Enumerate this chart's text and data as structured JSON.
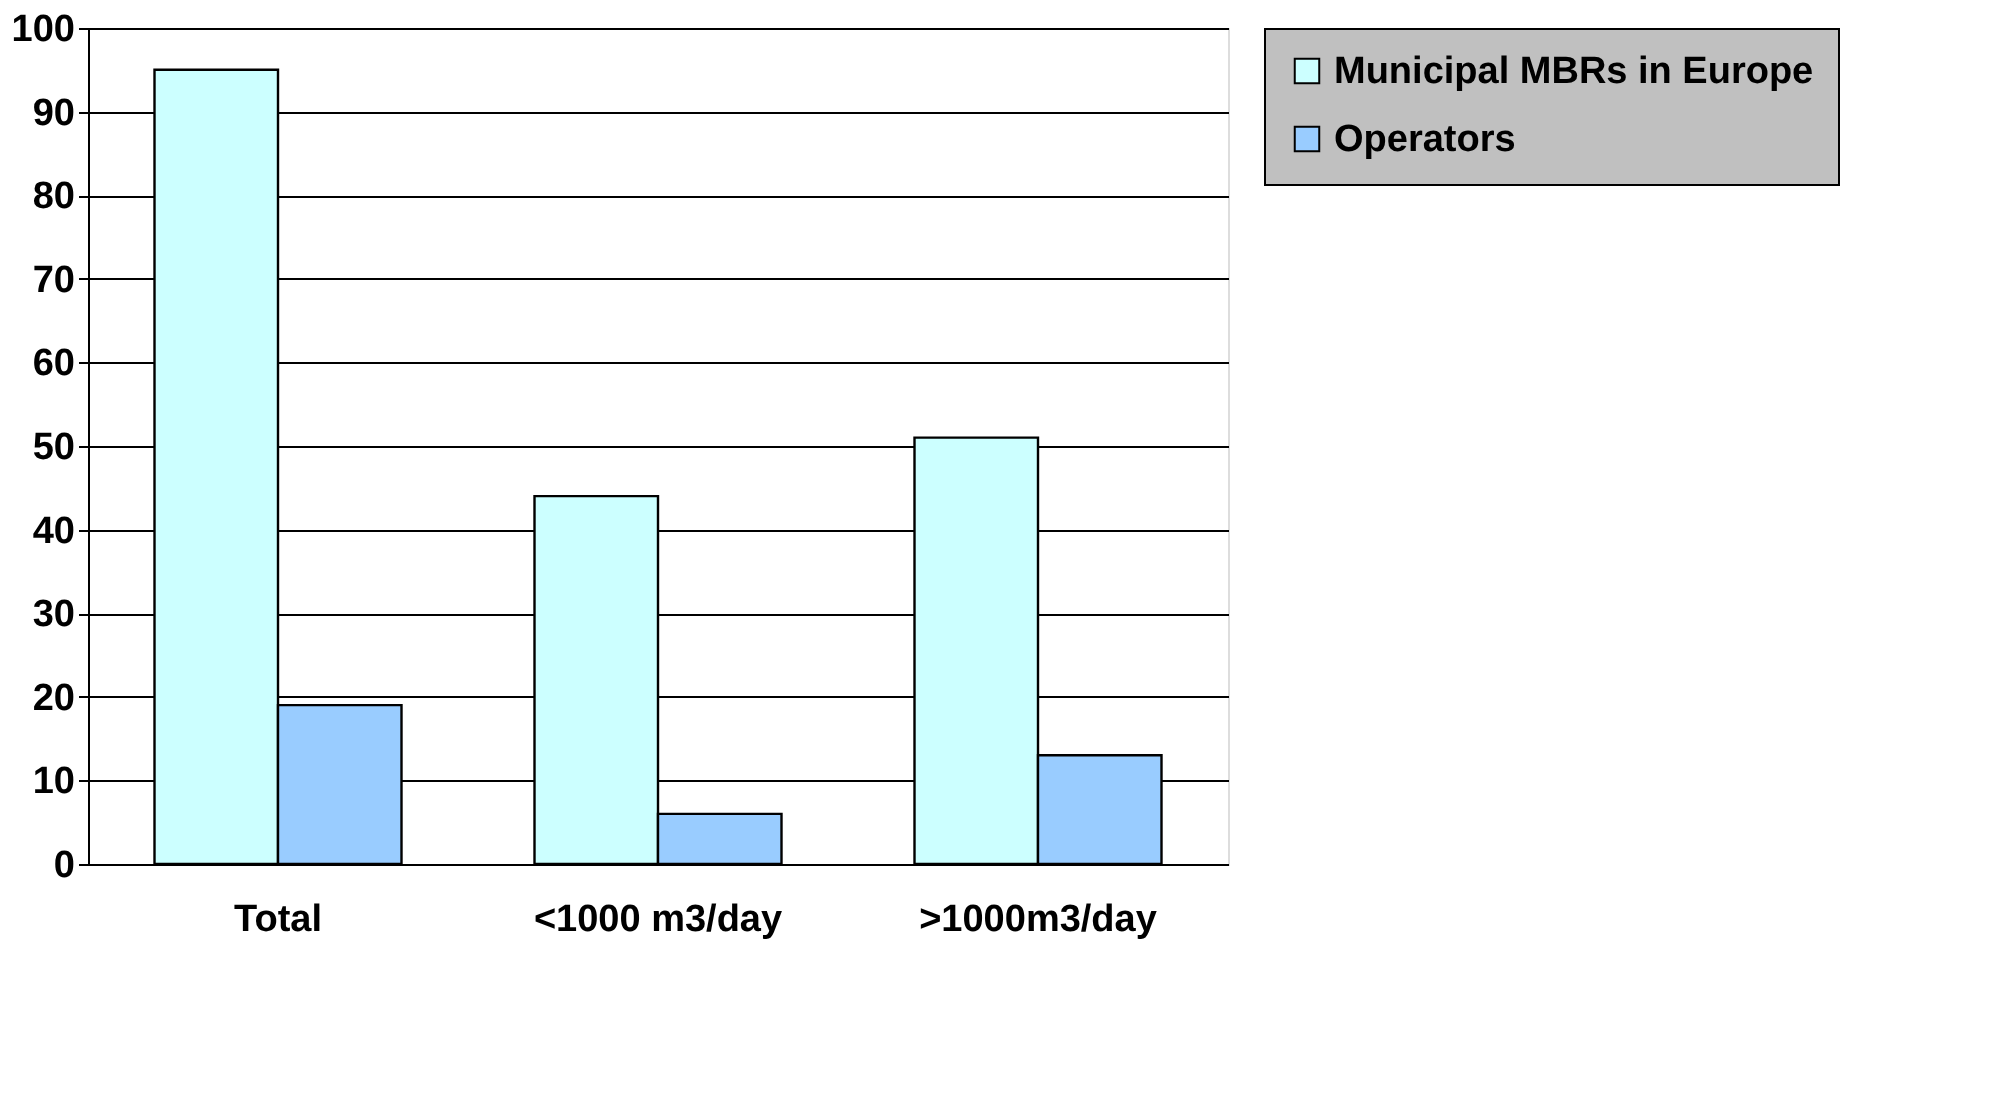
{
  "chart_data": {
    "type": "bar",
    "categories": [
      "Total",
      "<1000 m3/day",
      ">1000m3/day"
    ],
    "series": [
      {
        "name": "Municipal MBRs in Europe",
        "color": "#ccffff",
        "values": [
          95,
          44,
          51
        ]
      },
      {
        "name": "Operators",
        "color": "#99ccff",
        "values": [
          19,
          6,
          13
        ]
      }
    ],
    "ylim": [
      0,
      100
    ],
    "yticks": [
      0,
      10,
      20,
      30,
      40,
      50,
      60,
      70,
      80,
      90,
      100
    ],
    "grid": "y",
    "legend": "right"
  }
}
